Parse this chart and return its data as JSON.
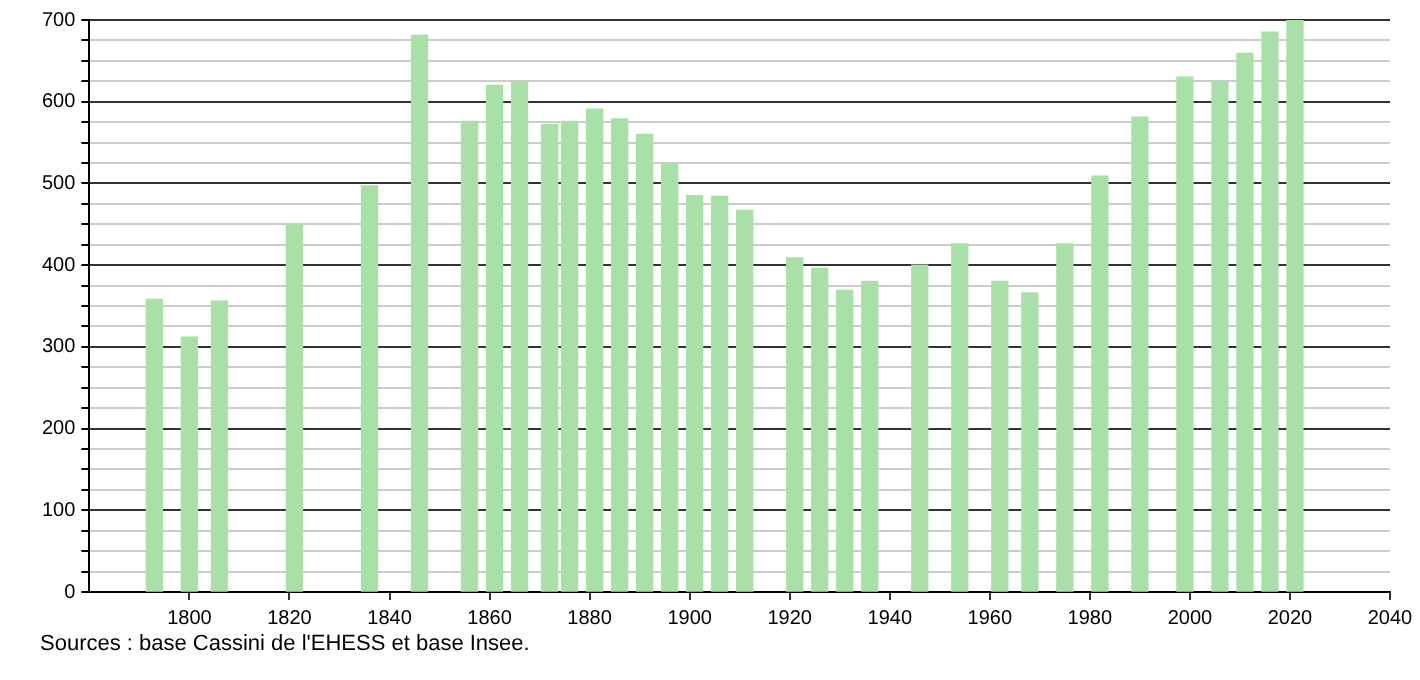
{
  "chart_data": {
    "type": "bar",
    "x": [
      1793,
      1800,
      1806,
      1821,
      1836,
      1846,
      1856,
      1861,
      1866,
      1872,
      1876,
      1881,
      1886,
      1891,
      1896,
      1901,
      1906,
      1911,
      1921,
      1926,
      1931,
      1936,
      1946,
      1954,
      1962,
      1968,
      1975,
      1982,
      1990,
      1999,
      2006,
      2011,
      2016,
      2021
    ],
    "values": [
      358,
      312,
      356,
      450,
      497,
      681,
      576,
      620,
      624,
      572,
      576,
      591,
      579,
      560,
      524,
      485,
      484,
      467,
      409,
      396,
      369,
      380,
      400,
      426,
      380,
      366,
      426,
      509,
      581,
      630,
      624,
      659,
      685,
      700
    ],
    "color": "#a8e0a8",
    "xlim": [
      1780,
      2040
    ],
    "xticks": [
      1800,
      1820,
      1840,
      1860,
      1880,
      1900,
      1920,
      1940,
      1960,
      1980,
      2000,
      2020,
      2040
    ],
    "ylim": [
      0,
      700
    ],
    "yticks": [
      0,
      {
        "value": 25,
        "label": null
      },
      {
        "value": 50,
        "label": null
      },
      {
        "value": 75,
        "label": null
      },
      100,
      {
        "value": 125,
        "label": null
      },
      {
        "value": 150,
        "label": null
      },
      {
        "value": 175,
        "label": null
      },
      200,
      {
        "value": 225,
        "label": null
      },
      {
        "value": 250,
        "label": null
      },
      {
        "value": 275,
        "label": null
      },
      300,
      {
        "value": 325,
        "label": null
      },
      {
        "value": 350,
        "label": null
      },
      {
        "value": 375,
        "label": null
      },
      400,
      {
        "value": 425,
        "label": null
      },
      {
        "value": 450,
        "label": null
      },
      {
        "value": 475,
        "label": null
      },
      500,
      {
        "value": 525,
        "label": null
      },
      {
        "value": 550,
        "label": null
      },
      {
        "value": 575,
        "label": null
      },
      600,
      {
        "value": 625,
        "label": null
      },
      {
        "value": 650,
        "label": null
      },
      {
        "value": 675,
        "label": null
      },
      700
    ],
    "grid": "y",
    "annotations": [
      "Sources : base Cassini de l'EHESS et base Insee."
    ]
  }
}
